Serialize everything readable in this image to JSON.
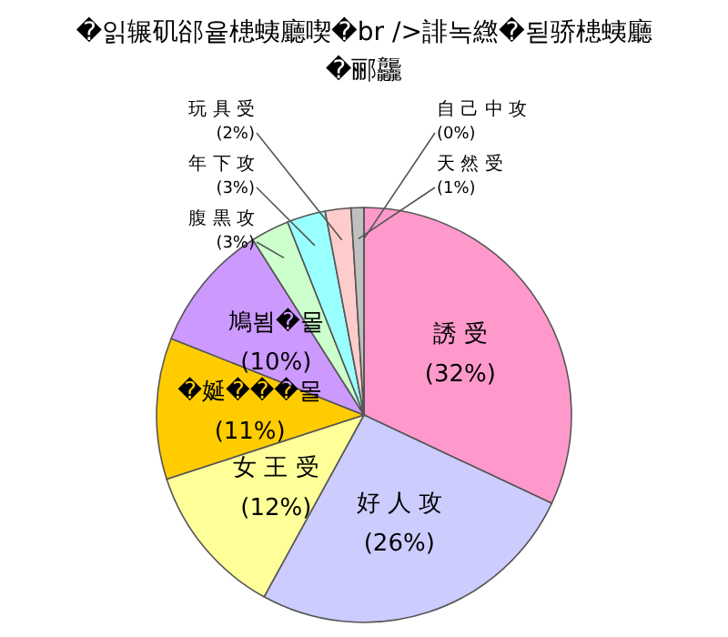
{
  "chart_data": {
    "type": "pie",
    "title": "�읽辗矶郤윹槵蛦廳喫�br />誹녹繺�됟骄槵蛦廳�郦龘",
    "categories": [
      "誘 受",
      "好 人 攻",
      "女 王 受",
      "�娫���몰",
      "鳩뵘�몰",
      "腹 黒 攻",
      "年 下 攻",
      "玩 具 受",
      "天 然 受",
      "自 己 中 攻"
    ],
    "values": [
      32,
      26,
      12,
      11,
      10,
      3,
      3,
      2,
      1,
      0
    ],
    "value_labels": [
      "(32%)",
      "(26%)",
      "(12%)",
      "(11%)",
      "(10%)",
      "(3%)",
      "(3%)",
      "(2%)",
      "(1%)",
      "(0%)"
    ],
    "colors": [
      "#ff99cc",
      "#ccccff",
      "#ffff99",
      "#ffcc00",
      "#cc99ff",
      "#ccffcc",
      "#99ffff",
      "#ffcccc",
      "#c0c0c0",
      "#6699cc"
    ]
  }
}
